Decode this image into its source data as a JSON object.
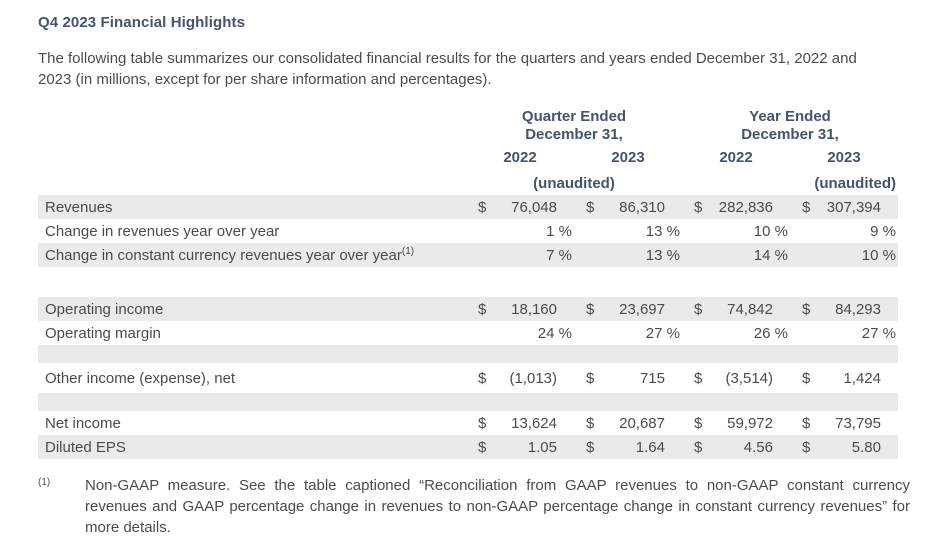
{
  "page": {
    "title": "Q4 2023 Financial Highlights",
    "intro": "The following table summarizes our consolidated financial results for the quarters and years ended December 31, 2022 and 2023 (in millions, except for per share information and percentages)."
  },
  "table": {
    "currency_symbol": "$",
    "percent_suffix": "%",
    "col_groups": [
      {
        "label_line1": "Quarter Ended",
        "label_line2": "December 31,",
        "years": [
          "2022",
          "2023"
        ],
        "unaudited": "(unaudited)"
      },
      {
        "label_line1": "Year Ended",
        "label_line2": "December 31,",
        "years": [
          "2022",
          "2023"
        ],
        "unaudited": "(unaudited)"
      }
    ],
    "rows": [
      {
        "label": "Revenues",
        "type": "currency",
        "shaded": true,
        "values": [
          "76,048",
          "86,310",
          "282,836",
          "307,394"
        ]
      },
      {
        "label": "Change in revenues year over year",
        "type": "percent",
        "shaded": false,
        "values": [
          "1",
          "13",
          "10",
          "9"
        ]
      },
      {
        "label": "Change in constant currency revenues year over year",
        "sup": "(1)",
        "type": "percent",
        "shaded": true,
        "values": [
          "7",
          "13",
          "14",
          "10"
        ]
      },
      {
        "type": "spacer",
        "shaded": false,
        "height": 30
      },
      {
        "label": "Operating income",
        "type": "currency",
        "shaded": true,
        "values": [
          "18,160",
          "23,697",
          "74,842",
          "84,293"
        ]
      },
      {
        "label": "Operating margin",
        "type": "percent",
        "shaded": false,
        "values": [
          "24",
          "27",
          "26",
          "27"
        ]
      },
      {
        "type": "spacer",
        "shaded": true,
        "height": 18
      },
      {
        "label": "Other income (expense), net",
        "type": "currency",
        "shaded": false,
        "height": 30,
        "values": [
          "(1,013)",
          "715",
          "(3,514)",
          "1,424"
        ]
      },
      {
        "type": "spacer",
        "shaded": true,
        "height": 18
      },
      {
        "label": "Net income",
        "type": "currency",
        "shaded": false,
        "values": [
          "13,624",
          "20,687",
          "59,972",
          "73,795"
        ]
      },
      {
        "label": "Diluted EPS",
        "type": "currency",
        "shaded": true,
        "values": [
          "1.05",
          "1.64",
          "4.56",
          "5.80"
        ]
      }
    ]
  },
  "footnote": {
    "marker": "(1)",
    "text": "Non-GAAP measure. See the table captioned “Reconciliation from GAAP revenues to non-GAAP constant currency revenues and GAAP percentage change in revenues to non-GAAP percentage change in constant currency revenues” for more details."
  },
  "colors": {
    "heading": "#44546A",
    "body": "#494B4F",
    "band": "#EAEAEC"
  }
}
